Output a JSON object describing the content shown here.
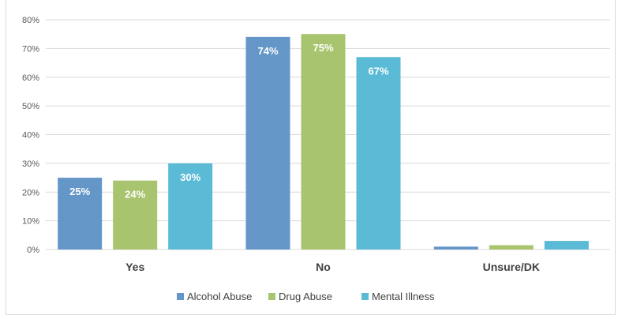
{
  "chart_data": {
    "type": "bar",
    "categories": [
      "Yes",
      "No",
      "Unsure/DK"
    ],
    "series": [
      {
        "name": "Alcohol Abuse",
        "color": "#6496c8",
        "values": [
          25,
          74,
          1
        ],
        "labels": [
          "25%",
          "74%",
          ""
        ]
      },
      {
        "name": "Drug Abuse",
        "color": "#a9c46e",
        "values": [
          24,
          75,
          1.5
        ],
        "labels": [
          "24%",
          "75%",
          ""
        ]
      },
      {
        "name": "Mental Illness",
        "color": "#5bbad5",
        "values": [
          30,
          67,
          3
        ],
        "labels": [
          "30%",
          "67%",
          ""
        ]
      }
    ],
    "yticks": [
      "0%",
      "10%",
      "20%",
      "30%",
      "40%",
      "50%",
      "60%",
      "70%",
      "80%"
    ],
    "ylim": [
      0,
      80
    ],
    "grid": true,
    "legend_position": "bottom"
  }
}
